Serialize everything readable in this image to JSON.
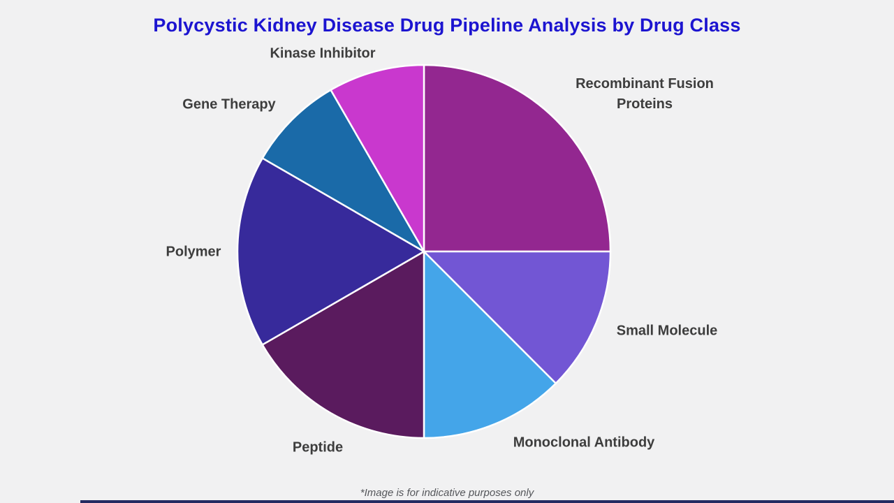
{
  "title": "Polycystic Kidney Disease Drug Pipeline Analysis by Drug Class",
  "footer": {
    "note": "*Image is for indicative purposes only"
  },
  "colors": {
    "background": "#f1f1f2",
    "title_text": "#1c14d0",
    "label_text": "#3d3d3d",
    "footer_text": "#54565a",
    "slice_border": "#ffffff",
    "bottom_bar": "#242a61"
  },
  "chart_data": {
    "type": "pie",
    "title": "Polycystic Kidney Disease Drug Pipeline Analysis by Drug Class",
    "start_angle_deg": 0,
    "direction": "clockwise",
    "legend": "none",
    "data_labels_shown": false,
    "slices": [
      {
        "label": "Recombinant Fusion Proteins",
        "percent": 25.0,
        "color": "#932790"
      },
      {
        "label": "Small Molecule",
        "percent": 12.5,
        "color": "#7256d4"
      },
      {
        "label": "Monoclonal Antibody",
        "percent": 12.5,
        "color": "#44a5e9"
      },
      {
        "label": "Peptide",
        "percent": 16.67,
        "color": "#5a1b5e"
      },
      {
        "label": "Polymer",
        "percent": 16.67,
        "color": "#372a9b"
      },
      {
        "label": "Gene Therapy",
        "percent": 8.33,
        "color": "#1a6aa8"
      },
      {
        "label": "Kinase Inhibitor",
        "percent": 8.33,
        "color": "#c938ce"
      }
    ]
  }
}
